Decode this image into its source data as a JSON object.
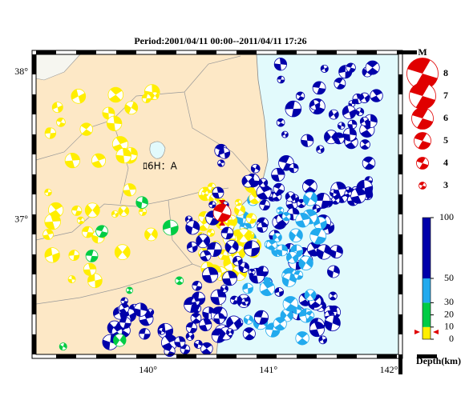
{
  "title": "Period:2001/04/11 00:00--2011/04/11 17:26",
  "map": {
    "xlim": [
      139.07,
      142.08
    ],
    "ylim": [
      36.09,
      38.12
    ],
    "xticks": [
      {
        "value": 140,
        "label": "140°"
      },
      {
        "value": 141,
        "label": "141°"
      },
      {
        "value": 142,
        "label": "142°"
      }
    ],
    "yticks": [
      {
        "value": 37,
        "label": "37°"
      },
      {
        "value": 38,
        "label": "38°"
      }
    ],
    "annotation": "ﾛ6H：A"
  },
  "magnitude_legend": {
    "title": "M",
    "values": [
      8,
      7,
      6,
      5,
      4,
      3
    ]
  },
  "depth_scale": {
    "title": "Depth(km)",
    "lim": [
      0,
      100
    ],
    "ticks": [
      0,
      10,
      20,
      30,
      50,
      100
    ],
    "bands": [
      {
        "from": 0,
        "to": 10,
        "color": "#ffee00"
      },
      {
        "from": 10,
        "to": 30,
        "color": "#00cc44"
      },
      {
        "from": 30,
        "to": 50,
        "color": "#22aaee"
      },
      {
        "from": 50,
        "to": 100,
        "color": "#0000aa"
      }
    ]
  }
}
